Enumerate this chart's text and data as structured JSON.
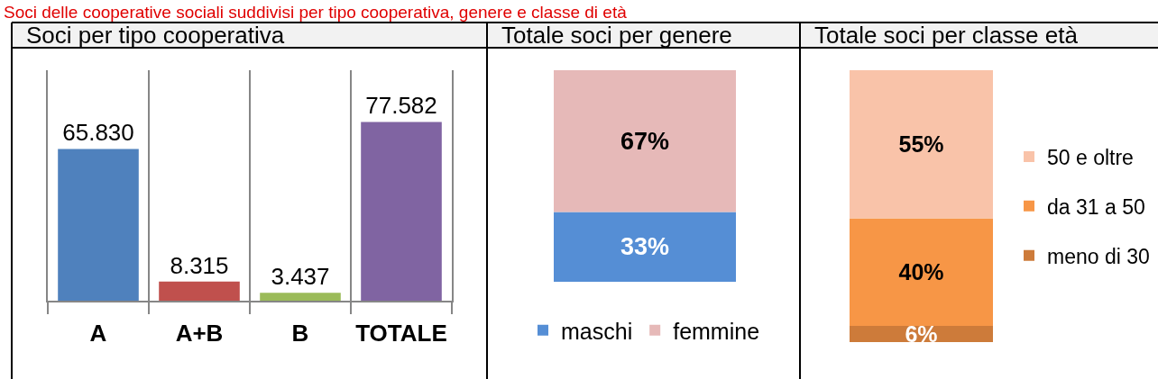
{
  "chart_data": [
    {
      "type": "bar",
      "title": "Soci per tipo cooperativa",
      "annotations": [
        "Soci delle cooperative sociali suddivisi per tipo cooperativa, genere e classe di età"
      ],
      "categories": [
        "A",
        "A+B",
        "B",
        "TOTALE"
      ],
      "values": [
        65830,
        8315,
        3437,
        77582
      ],
      "colors": [
        "#4f81bd",
        "#c0504d",
        "#9bbb59",
        "#8064a2"
      ],
      "value_labels": [
        "65.830",
        "8.315",
        "3.437",
        "77.582"
      ],
      "ylim": [
        0,
        100000
      ],
      "grid": "x",
      "tick_labels": "x",
      "legend": false
    },
    {
      "type": "bar",
      "title": "Totale soci per genere",
      "categories": [
        null
      ],
      "stacked": true,
      "series": [
        {
          "name": "maschi",
          "color": "#558ed5",
          "values": [
            33
          ],
          "value_labels": [
            "33%"
          ]
        },
        {
          "name": "femmine",
          "color": "#e6b9b8",
          "values": [
            67
          ],
          "value_labels": [
            "67%"
          ]
        }
      ],
      "ylim": [
        0,
        100
      ],
      "tick_labels": false,
      "legend": "bottom"
    },
    {
      "type": "bar",
      "title": "Totale soci per classe età",
      "categories": [
        null
      ],
      "stacked": true,
      "series": [
        {
          "name": "meno di 30",
          "color": "#cd7b3a",
          "values": [
            6
          ],
          "value_labels": [
            "6%"
          ]
        },
        {
          "name": "da 31 a 50",
          "color": "#f79646",
          "values": [
            40
          ],
          "value_labels": [
            "40%"
          ]
        },
        {
          "name": "50 e oltre",
          "color": "#f9c3a9",
          "values": [
            55
          ],
          "value_labels": [
            "55%"
          ]
        }
      ],
      "ylim": [
        0,
        101
      ],
      "tick_labels": false,
      "legend": "right"
    }
  ]
}
